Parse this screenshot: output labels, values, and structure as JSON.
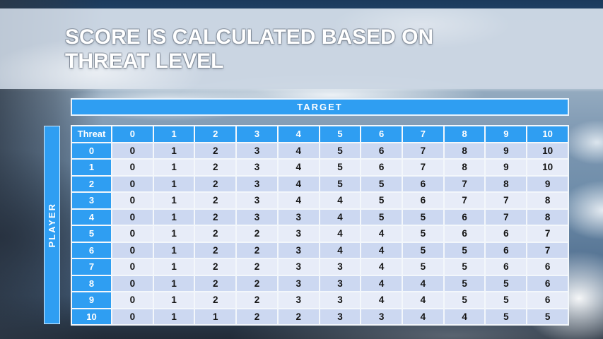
{
  "slide": {
    "title_line1": "SCORE IS CALCULATED BASED ON",
    "title_line2": "THREAT LEVEL"
  },
  "matrix": {
    "target_label": "TARGET",
    "player_label": "PLAYER",
    "corner_label": "Threat",
    "column_headers": [
      0,
      1,
      2,
      3,
      4,
      5,
      6,
      7,
      8,
      9,
      10
    ],
    "rows": [
      {
        "threat": 0,
        "cells": [
          0,
          1,
          2,
          3,
          4,
          5,
          6,
          7,
          8,
          9,
          10
        ]
      },
      {
        "threat": 1,
        "cells": [
          0,
          1,
          2,
          3,
          4,
          5,
          6,
          7,
          8,
          9,
          10
        ]
      },
      {
        "threat": 2,
        "cells": [
          0,
          1,
          2,
          3,
          4,
          5,
          5,
          6,
          7,
          8,
          9
        ]
      },
      {
        "threat": 3,
        "cells": [
          0,
          1,
          2,
          3,
          4,
          4,
          5,
          6,
          7,
          7,
          8
        ]
      },
      {
        "threat": 4,
        "cells": [
          0,
          1,
          2,
          3,
          3,
          4,
          5,
          5,
          6,
          7,
          8
        ]
      },
      {
        "threat": 5,
        "cells": [
          0,
          1,
          2,
          2,
          3,
          4,
          4,
          5,
          6,
          6,
          7
        ]
      },
      {
        "threat": 6,
        "cells": [
          0,
          1,
          2,
          2,
          3,
          4,
          4,
          5,
          5,
          6,
          7
        ]
      },
      {
        "threat": 7,
        "cells": [
          0,
          1,
          2,
          2,
          3,
          3,
          4,
          5,
          5,
          6,
          6
        ]
      },
      {
        "threat": 8,
        "cells": [
          0,
          1,
          2,
          2,
          3,
          3,
          4,
          4,
          5,
          5,
          6
        ]
      },
      {
        "threat": 9,
        "cells": [
          0,
          1,
          2,
          2,
          3,
          3,
          4,
          4,
          5,
          5,
          6
        ]
      },
      {
        "threat": 10,
        "cells": [
          0,
          1,
          1,
          2,
          2,
          3,
          3,
          4,
          4,
          5,
          5
        ]
      }
    ]
  },
  "colors": {
    "accent_blue": "#2f9ef2",
    "row_band_dark": "#ccd8f1",
    "row_band_light": "#e7ecf8",
    "grid_line": "#f3f7fb"
  }
}
